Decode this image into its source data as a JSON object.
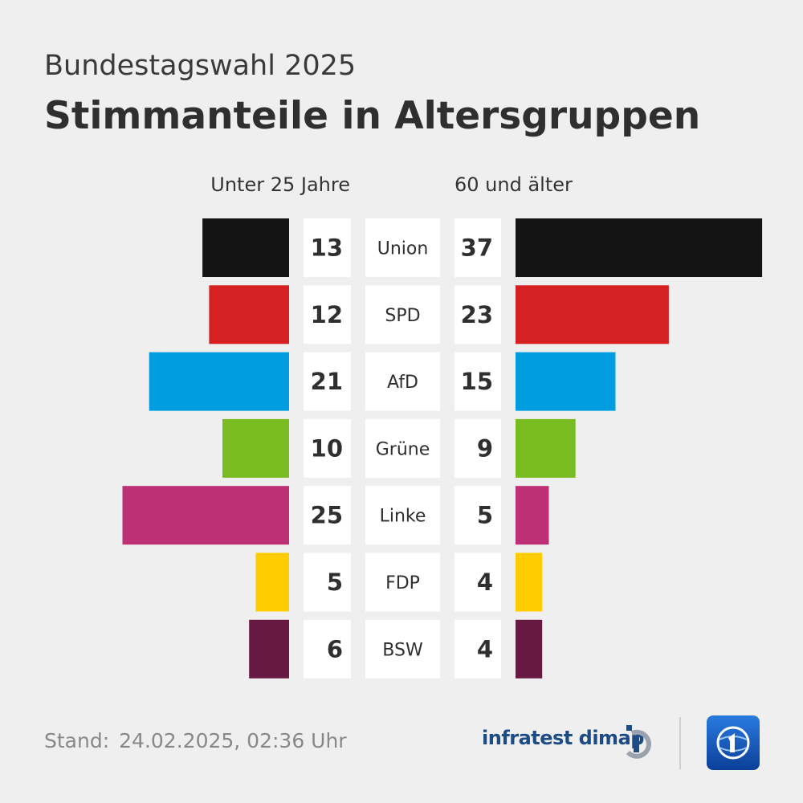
{
  "header": {
    "subtitle": "Bundestagswahl 2025",
    "title": "Stimmanteile in Altersgruppen"
  },
  "chart_data": {
    "type": "bar",
    "orientation": "horizontal-butterfly",
    "title": "Stimmanteile in Altersgruppen",
    "unit": "%",
    "categories": [
      "Union",
      "SPD",
      "AfD",
      "Grüne",
      "Linke",
      "FDP",
      "BSW"
    ],
    "colors": [
      "#141414",
      "#d52121",
      "#009ee0",
      "#78bc21",
      "#be3075",
      "#ffcc00",
      "#661a42"
    ],
    "series": [
      {
        "name": "Unter 25 Jahre",
        "side": "left",
        "values": [
          13,
          12,
          21,
          10,
          25,
          5,
          6
        ]
      },
      {
        "name": "60 und älter",
        "side": "right",
        "values": [
          37,
          23,
          15,
          9,
          5,
          4,
          4
        ]
      }
    ],
    "xlim": [
      0,
      37
    ]
  },
  "footer": {
    "stand_label": "Stand:",
    "timestamp": "24.02.2025, 02:36 Uhr",
    "source": "infratest dimap"
  },
  "logos": {
    "infratest": "infratest-dimap-logo",
    "ard": "tagesschau-logo"
  }
}
